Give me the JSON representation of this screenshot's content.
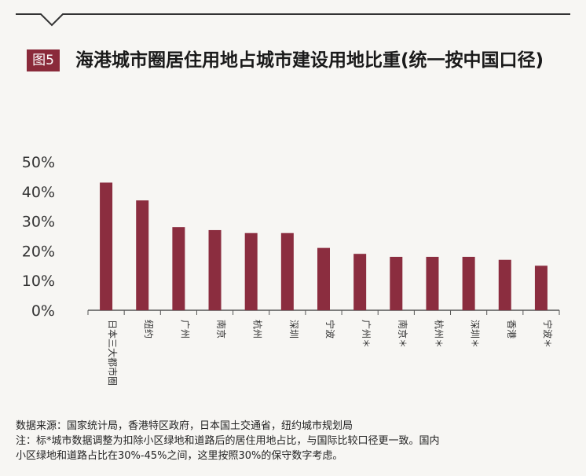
{
  "figure_label": "图5",
  "title": "海港城市圈居住用地占城市建设用地比重(统一按中国口径)",
  "chart_data": {
    "type": "bar",
    "categories": [
      "日本三大都市圈",
      "纽约",
      "广州",
      "南京",
      "杭州",
      "深圳",
      "宁波",
      "广州＊",
      "南京＊",
      "杭州＊",
      "深圳＊",
      "香港",
      "宁波＊"
    ],
    "values": [
      43,
      37,
      28,
      27,
      26,
      26,
      21,
      19,
      18,
      18,
      18,
      17,
      15
    ],
    "ylim": [
      0,
      50
    ],
    "yticks": [
      "0%",
      "10%",
      "20%",
      "30%",
      "40%",
      "50%"
    ],
    "grid": false,
    "colors": {
      "bar": "#8b2d3f",
      "axis": "#555555"
    }
  },
  "notes": {
    "source": "数据来源：国家统计局，香港特区政府，日本国土交通省，纽约城市规划局",
    "note_line1": "注：标*城市数据调整为扣除小区绿地和道路后的居住用地占比，与国际比较口径更一致。国内",
    "note_line2": "小区绿地和道路占比在30%-45%之间，这里按照30%的保守数字考虑。"
  }
}
